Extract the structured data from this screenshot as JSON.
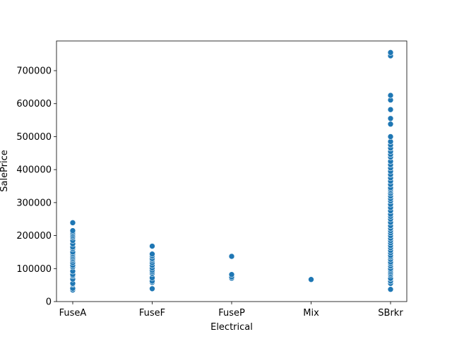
{
  "chart_data": {
    "type": "scatter",
    "title": "",
    "xlabel": "Electrical",
    "ylabel": "SalePrice",
    "categories": [
      "FuseA",
      "FuseF",
      "FuseP",
      "Mix",
      "SBrkr"
    ],
    "ylim": [
      0,
      790000
    ],
    "yticks": [
      0,
      100000,
      200000,
      300000,
      400000,
      500000,
      600000,
      700000
    ],
    "ytick_labels": [
      "0",
      "100000",
      "200000",
      "300000",
      "400000",
      "500000",
      "600000",
      "700000"
    ],
    "grid": false,
    "legend": "none",
    "point_color": "#1f77b4",
    "points": [
      [
        "FuseA",
        35000
      ],
      [
        "FuseA",
        40000
      ],
      [
        "FuseA",
        52000
      ],
      [
        "FuseA",
        55000
      ],
      [
        "FuseA",
        68000
      ],
      [
        "FuseA",
        78000
      ],
      [
        "FuseA",
        82000
      ],
      [
        "FuseA",
        92000
      ],
      [
        "FuseA",
        105000
      ],
      [
        "FuseA",
        110000
      ],
      [
        "FuseA",
        118000
      ],
      [
        "FuseA",
        125000
      ],
      [
        "FuseA",
        130000
      ],
      [
        "FuseA",
        135000
      ],
      [
        "FuseA",
        140000
      ],
      [
        "FuseA",
        145000
      ],
      [
        "FuseA",
        150000
      ],
      [
        "FuseA",
        160000
      ],
      [
        "FuseA",
        165000
      ],
      [
        "FuseA",
        175000
      ],
      [
        "FuseA",
        185000
      ],
      [
        "FuseA",
        195000
      ],
      [
        "FuseA",
        200000
      ],
      [
        "FuseA",
        205000
      ],
      [
        "FuseA",
        210000
      ],
      [
        "FuseA",
        215000
      ],
      [
        "FuseA",
        239000
      ],
      [
        "FuseF",
        39000
      ],
      [
        "FuseF",
        58000
      ],
      [
        "FuseF",
        62000
      ],
      [
        "FuseF",
        72000
      ],
      [
        "FuseF",
        85000
      ],
      [
        "FuseF",
        90000
      ],
      [
        "FuseF",
        95000
      ],
      [
        "FuseF",
        102000
      ],
      [
        "FuseF",
        110000
      ],
      [
        "FuseF",
        118000
      ],
      [
        "FuseF",
        125000
      ],
      [
        "FuseF",
        130000
      ],
      [
        "FuseF",
        138000
      ],
      [
        "FuseF",
        144000
      ],
      [
        "FuseF",
        168000
      ],
      [
        "FuseP",
        71000
      ],
      [
        "FuseP",
        75000
      ],
      [
        "FuseP",
        82000
      ],
      [
        "FuseP",
        137000
      ],
      [
        "Mix",
        67000
      ],
      [
        "SBrkr",
        37000
      ],
      [
        "SBrkr",
        55000
      ],
      [
        "SBrkr",
        62000
      ],
      [
        "SBrkr",
        70000
      ],
      [
        "SBrkr",
        80000
      ],
      [
        "SBrkr",
        85000
      ],
      [
        "SBrkr",
        90000
      ],
      [
        "SBrkr",
        95000
      ],
      [
        "SBrkr",
        100000
      ],
      [
        "SBrkr",
        108000
      ],
      [
        "SBrkr",
        115000
      ],
      [
        "SBrkr",
        120000
      ],
      [
        "SBrkr",
        128000
      ],
      [
        "SBrkr",
        135000
      ],
      [
        "SBrkr",
        140000
      ],
      [
        "SBrkr",
        148000
      ],
      [
        "SBrkr",
        155000
      ],
      [
        "SBrkr",
        163000
      ],
      [
        "SBrkr",
        170000
      ],
      [
        "SBrkr",
        178000
      ],
      [
        "SBrkr",
        185000
      ],
      [
        "SBrkr",
        192000
      ],
      [
        "SBrkr",
        200000
      ],
      [
        "SBrkr",
        208000
      ],
      [
        "SBrkr",
        215000
      ],
      [
        "SBrkr",
        222000
      ],
      [
        "SBrkr",
        230000
      ],
      [
        "SBrkr",
        240000
      ],
      [
        "SBrkr",
        250000
      ],
      [
        "SBrkr",
        258000
      ],
      [
        "SBrkr",
        265000
      ],
      [
        "SBrkr",
        275000
      ],
      [
        "SBrkr",
        285000
      ],
      [
        "SBrkr",
        295000
      ],
      [
        "SBrkr",
        305000
      ],
      [
        "SBrkr",
        312000
      ],
      [
        "SBrkr",
        320000
      ],
      [
        "SBrkr",
        328000
      ],
      [
        "SBrkr",
        335000
      ],
      [
        "SBrkr",
        340000
      ],
      [
        "SBrkr",
        345000
      ],
      [
        "SBrkr",
        355000
      ],
      [
        "SBrkr",
        365000
      ],
      [
        "SBrkr",
        375000
      ],
      [
        "SBrkr",
        385000
      ],
      [
        "SBrkr",
        395000
      ],
      [
        "SBrkr",
        405000
      ],
      [
        "SBrkr",
        415000
      ],
      [
        "SBrkr",
        425000
      ],
      [
        "SBrkr",
        438000
      ],
      [
        "SBrkr",
        446000
      ],
      [
        "SBrkr",
        455000
      ],
      [
        "SBrkr",
        465000
      ],
      [
        "SBrkr",
        475000
      ],
      [
        "SBrkr",
        485000
      ],
      [
        "SBrkr",
        500000
      ],
      [
        "SBrkr",
        538000
      ],
      [
        "SBrkr",
        555000
      ],
      [
        "SBrkr",
        582000
      ],
      [
        "SBrkr",
        611000
      ],
      [
        "SBrkr",
        625000
      ],
      [
        "SBrkr",
        745000
      ],
      [
        "SBrkr",
        755000
      ]
    ]
  }
}
